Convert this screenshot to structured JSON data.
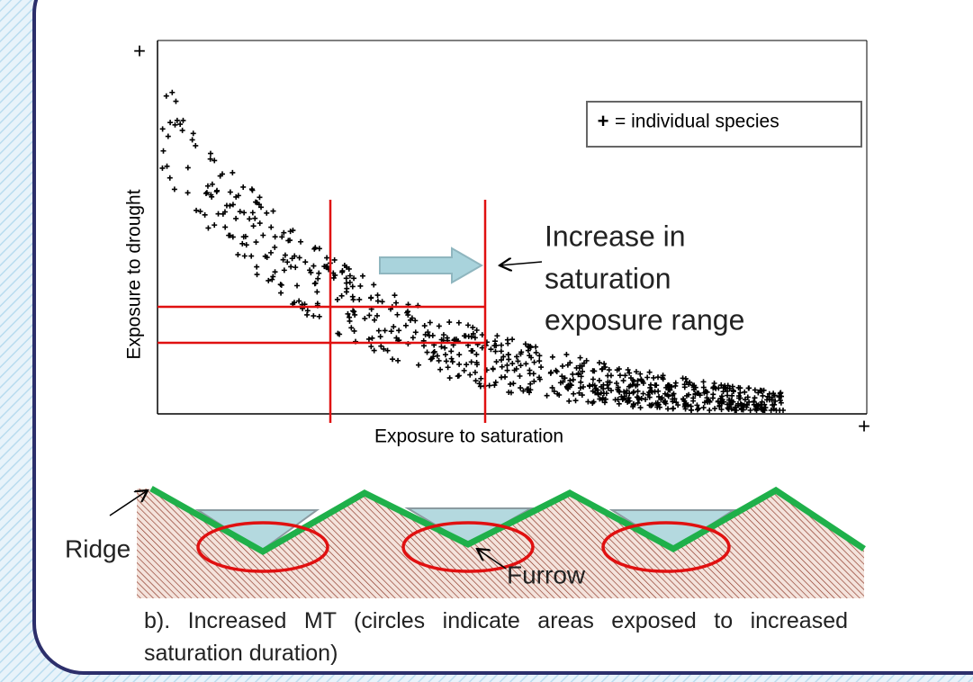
{
  "plot": {
    "y_axis_end": "+",
    "x_axis_end": "+",
    "y_label": "Exposure to drought",
    "x_label": "Exposure to saturation",
    "legend": "= individual species",
    "annotation": [
      "Increase in",
      "saturation",
      "exposure range"
    ]
  },
  "diagram": {
    "ridge_label": "Ridge",
    "furrow_label": "Furrow",
    "caption": "b). Increased MT (circles indicate areas exposed to increased saturation duration)"
  }
}
